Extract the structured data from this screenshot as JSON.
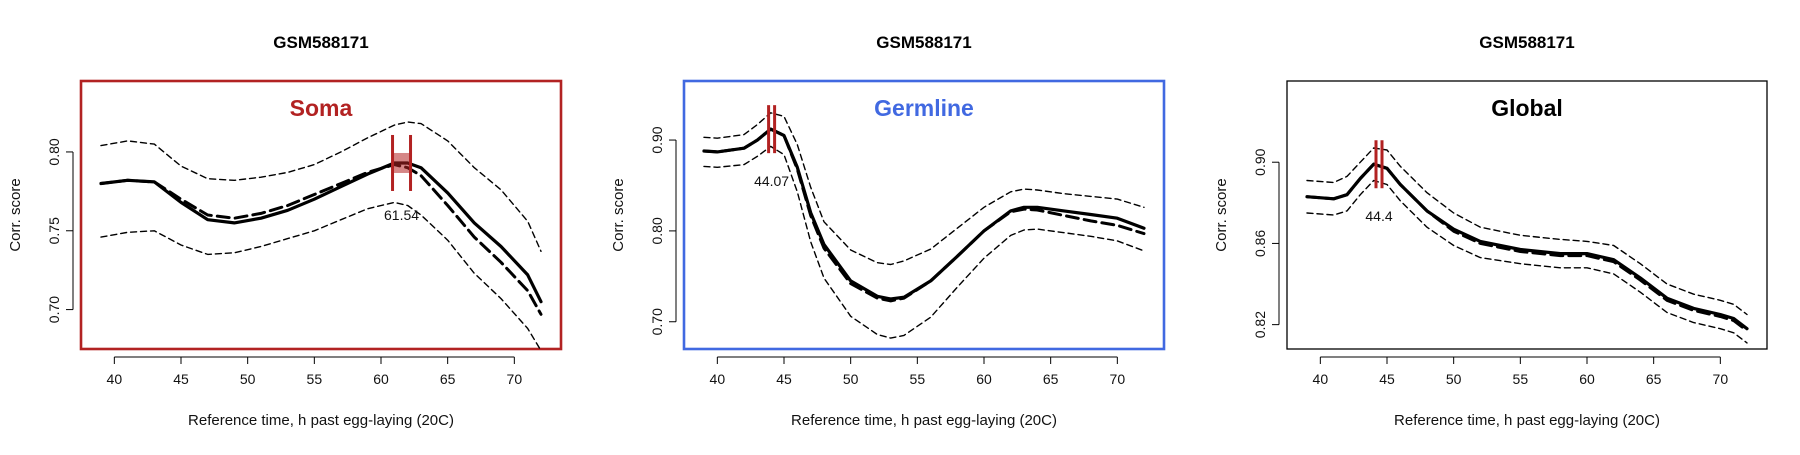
{
  "chart_data": [
    {
      "type": "line",
      "title": "GSM588171",
      "panel_label": "Soma",
      "frame_color": "#b22222",
      "label_color": "#b22222",
      "xlabel": "Reference time, h past egg-laying (20C)",
      "ylabel": "Corr. score",
      "xlim": [
        37.5,
        73.5
      ],
      "ylim": [
        0.675,
        0.845
      ],
      "xticks": [
        "40",
        "45",
        "50",
        "55",
        "60",
        "65",
        "70"
      ],
      "yticks": [
        "0.70",
        "0.75",
        "0.80"
      ],
      "series": [
        {
          "style": "solid",
          "x": [
            39,
            41,
            43,
            45,
            47,
            49,
            51,
            53,
            55,
            57,
            59,
            61,
            62,
            63,
            65,
            67,
            69,
            71,
            72
          ],
          "y": [
            0.78,
            0.782,
            0.781,
            0.768,
            0.757,
            0.755,
            0.758,
            0.763,
            0.77,
            0.778,
            0.786,
            0.793,
            0.793,
            0.79,
            0.774,
            0.755,
            0.74,
            0.722,
            0.705
          ]
        },
        {
          "style": "dashed",
          "x": [
            39,
            41,
            43,
            45,
            47,
            49,
            51,
            53,
            55,
            57,
            59,
            61,
            62,
            63,
            65,
            67,
            69,
            71,
            72
          ],
          "y": [
            0.78,
            0.782,
            0.781,
            0.77,
            0.76,
            0.758,
            0.761,
            0.766,
            0.773,
            0.78,
            0.787,
            0.792,
            0.79,
            0.785,
            0.766,
            0.746,
            0.73,
            0.712,
            0.697
          ]
        },
        {
          "style": "dashed-thin",
          "x": [
            39,
            41,
            43,
            45,
            47,
            49,
            51,
            53,
            55,
            57,
            59,
            61,
            62,
            63,
            65,
            67,
            69,
            71,
            72
          ],
          "y": [
            0.804,
            0.807,
            0.805,
            0.791,
            0.783,
            0.782,
            0.784,
            0.787,
            0.792,
            0.8,
            0.809,
            0.817,
            0.819,
            0.818,
            0.807,
            0.79,
            0.776,
            0.756,
            0.737
          ]
        },
        {
          "style": "dashed-thin",
          "x": [
            39,
            41,
            43,
            45,
            47,
            49,
            51,
            53,
            55,
            57,
            59,
            61,
            62,
            63,
            65,
            67,
            69,
            71,
            72
          ],
          "y": [
            0.746,
            0.749,
            0.75,
            0.741,
            0.735,
            0.736,
            0.74,
            0.745,
            0.75,
            0.757,
            0.764,
            0.768,
            0.766,
            0.76,
            0.744,
            0.723,
            0.707,
            0.688,
            0.674
          ]
        }
      ],
      "peak": {
        "x": 61.54,
        "y": 0.793,
        "label": "61.54",
        "color": "#b22222"
      }
    },
    {
      "type": "line",
      "title": "GSM588171",
      "panel_label": "Germline",
      "frame_color": "#4169e1",
      "label_color": "#4169e1",
      "xlabel": "Reference time, h past egg-laying (20C)",
      "ylabel": "Corr. score",
      "xlim": [
        37.5,
        73.5
      ],
      "ylim": [
        0.67,
        0.965
      ],
      "xticks": [
        "40",
        "45",
        "50",
        "55",
        "60",
        "65",
        "70"
      ],
      "yticks": [
        "0.70",
        "0.80",
        "0.90"
      ],
      "series": [
        {
          "style": "solid",
          "x": [
            39,
            40,
            42,
            43,
            44,
            45,
            46,
            47,
            48,
            50,
            52,
            53,
            54,
            56,
            58,
            60,
            62,
            63,
            64,
            66,
            68,
            70,
            72
          ],
          "y": [
            0.888,
            0.887,
            0.891,
            0.9,
            0.912,
            0.905,
            0.87,
            0.82,
            0.785,
            0.745,
            0.728,
            0.725,
            0.727,
            0.745,
            0.772,
            0.8,
            0.822,
            0.826,
            0.826,
            0.822,
            0.818,
            0.814,
            0.803
          ]
        },
        {
          "style": "dashed",
          "x": [
            39,
            40,
            42,
            43,
            44,
            45,
            46,
            47,
            48,
            50,
            52,
            53,
            54,
            56,
            58,
            60,
            62,
            63,
            64,
            66,
            68,
            70,
            72
          ],
          "y": [
            0.888,
            0.887,
            0.891,
            0.9,
            0.912,
            0.905,
            0.868,
            0.817,
            0.781,
            0.742,
            0.726,
            0.723,
            0.726,
            0.745,
            0.772,
            0.8,
            0.821,
            0.824,
            0.823,
            0.817,
            0.811,
            0.806,
            0.797
          ]
        },
        {
          "style": "dashed-thin",
          "x": [
            39,
            40,
            42,
            43,
            44,
            45,
            46,
            47,
            48,
            50,
            52,
            53,
            54,
            56,
            58,
            60,
            62,
            63,
            64,
            66,
            68,
            70,
            72
          ],
          "y": [
            0.903,
            0.902,
            0.906,
            0.917,
            0.93,
            0.926,
            0.895,
            0.848,
            0.81,
            0.779,
            0.765,
            0.763,
            0.767,
            0.78,
            0.803,
            0.826,
            0.843,
            0.846,
            0.845,
            0.841,
            0.838,
            0.835,
            0.826
          ]
        },
        {
          "style": "dashed-thin",
          "x": [
            39,
            40,
            42,
            43,
            44,
            45,
            46,
            47,
            48,
            50,
            52,
            53,
            54,
            56,
            58,
            60,
            62,
            63,
            64,
            66,
            68,
            70,
            72
          ],
          "y": [
            0.871,
            0.87,
            0.873,
            0.882,
            0.893,
            0.884,
            0.843,
            0.788,
            0.748,
            0.706,
            0.686,
            0.682,
            0.685,
            0.705,
            0.738,
            0.77,
            0.795,
            0.801,
            0.802,
            0.798,
            0.794,
            0.789,
            0.778
          ]
        }
      ],
      "peak": {
        "x": 44.07,
        "y": 0.912,
        "label": "44.07",
        "color": "#b22222"
      }
    },
    {
      "type": "line",
      "title": "GSM588171",
      "panel_label": "Global",
      "frame_color": "#000000",
      "label_color": "#000000",
      "xlabel": "Reference time, h past egg-laying (20C)",
      "ylabel": "Corr. score",
      "xlim": [
        37.5,
        73.5
      ],
      "ylim": [
        0.808,
        0.94
      ],
      "xticks": [
        "40",
        "45",
        "50",
        "55",
        "60",
        "65",
        "70"
      ],
      "yticks": [
        "0.82",
        "0.86",
        "0.90"
      ],
      "series": [
        {
          "style": "solid",
          "x": [
            39,
            41,
            42,
            43,
            44,
            45,
            46,
            48,
            50,
            52,
            55,
            58,
            60,
            62,
            64,
            66,
            68,
            70,
            71,
            72
          ],
          "y": [
            0.883,
            0.882,
            0.884,
            0.892,
            0.899,
            0.897,
            0.889,
            0.876,
            0.867,
            0.861,
            0.857,
            0.855,
            0.855,
            0.852,
            0.843,
            0.833,
            0.828,
            0.825,
            0.823,
            0.818
          ]
        },
        {
          "style": "dashed",
          "x": [
            39,
            41,
            42,
            43,
            44,
            45,
            46,
            48,
            50,
            52,
            55,
            58,
            60,
            62,
            64,
            66,
            68,
            70,
            71,
            72
          ],
          "y": [
            0.883,
            0.882,
            0.884,
            0.892,
            0.899,
            0.897,
            0.889,
            0.876,
            0.866,
            0.86,
            0.856,
            0.854,
            0.854,
            0.851,
            0.842,
            0.832,
            0.827,
            0.824,
            0.822,
            0.817
          ]
        },
        {
          "style": "dashed-thin",
          "x": [
            39,
            41,
            42,
            43,
            44,
            45,
            46,
            48,
            50,
            52,
            55,
            58,
            60,
            62,
            64,
            66,
            68,
            70,
            71,
            72
          ],
          "y": [
            0.891,
            0.89,
            0.893,
            0.9,
            0.907,
            0.906,
            0.898,
            0.885,
            0.875,
            0.868,
            0.864,
            0.862,
            0.861,
            0.859,
            0.85,
            0.84,
            0.835,
            0.832,
            0.83,
            0.825
          ]
        },
        {
          "style": "dashed-thin",
          "x": [
            39,
            41,
            42,
            43,
            44,
            45,
            46,
            48,
            50,
            52,
            55,
            58,
            60,
            62,
            64,
            66,
            68,
            70,
            71,
            72
          ],
          "y": [
            0.875,
            0.874,
            0.876,
            0.884,
            0.891,
            0.889,
            0.881,
            0.868,
            0.859,
            0.853,
            0.85,
            0.848,
            0.848,
            0.845,
            0.836,
            0.826,
            0.821,
            0.818,
            0.816,
            0.811
          ]
        }
      ],
      "peak": {
        "x": 44.4,
        "y": 0.899,
        "label": "44.4",
        "color": "#b22222"
      }
    }
  ]
}
